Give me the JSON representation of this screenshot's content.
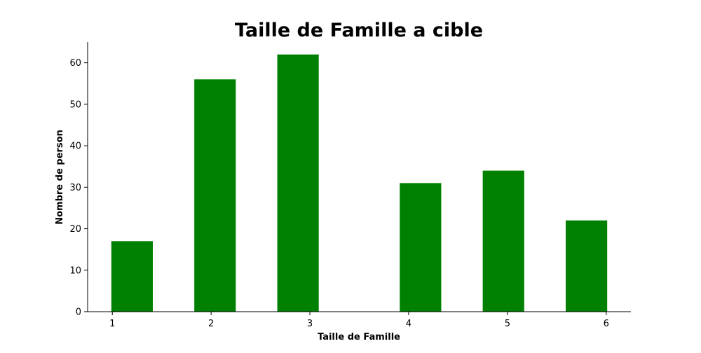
{
  "chart_data": {
    "type": "bar",
    "title": "Taille de Famille a cible",
    "xlabel": "Taille de Famille",
    "ylabel": "Nombre de person",
    "x": [
      1.2,
      2.04,
      2.88,
      4.12,
      4.96,
      5.8
    ],
    "values": [
      17,
      56,
      62,
      31,
      34,
      22
    ],
    "bar_width": 0.42,
    "xlim": [
      0.75,
      6.25
    ],
    "ylim": [
      0,
      65
    ],
    "xticks": [
      1,
      2,
      3,
      4,
      5,
      6
    ],
    "yticks": [
      0,
      10,
      20,
      30,
      40,
      50,
      60
    ],
    "bar_color": "#008000",
    "grid": false,
    "spines": [
      "left",
      "bottom"
    ]
  }
}
